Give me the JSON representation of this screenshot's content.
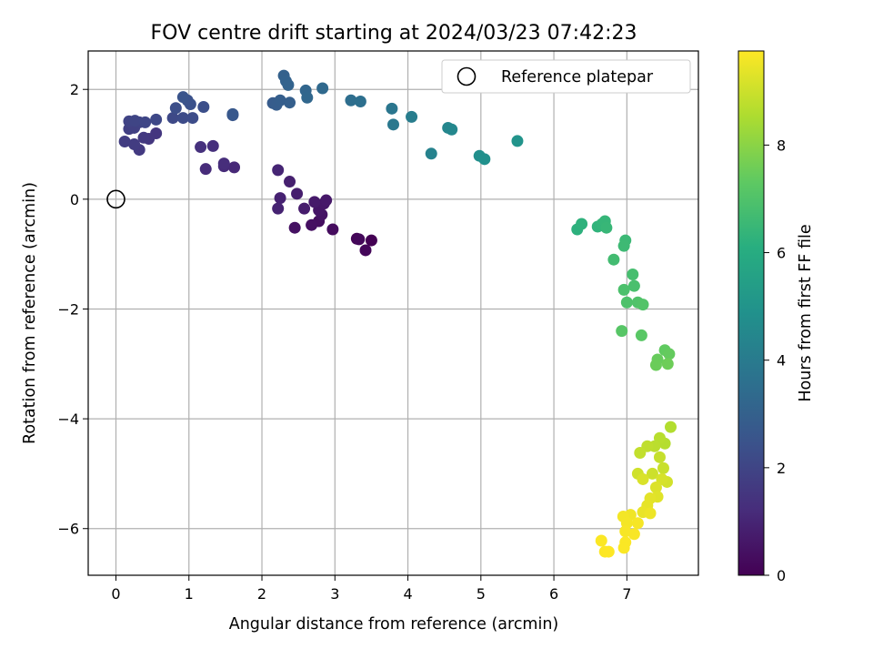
{
  "chart_data": {
    "type": "scatter",
    "title": "FOV centre drift starting at 2024/03/23 07:42:23",
    "xlabel": "Angular distance from reference (arcmin)",
    "ylabel": "Rotation from reference (arcmin)",
    "xlim": [
      -0.38,
      7.98
    ],
    "ylim": [
      -6.85,
      2.7
    ],
    "xticks": [
      0,
      1,
      2,
      3,
      4,
      5,
      6,
      7
    ],
    "yticks": [
      -6,
      -4,
      -2,
      0,
      2
    ],
    "grid": true,
    "legend": {
      "position": "top-right",
      "label": "Reference platepar"
    },
    "reference_point": {
      "x": 0,
      "y": 0
    },
    "colorbar": {
      "label": "Hours from first FF file",
      "colormap": "viridis",
      "range": [
        0,
        9.75
      ],
      "ticks": [
        0,
        2,
        4,
        6,
        8
      ]
    },
    "points": [
      {
        "x": 3.5,
        "y": -0.75,
        "c": 0.0
      },
      {
        "x": 3.3,
        "y": -0.72,
        "c": 0.1
      },
      {
        "x": 3.42,
        "y": -0.93,
        "c": 0.15
      },
      {
        "x": 3.33,
        "y": -0.73,
        "c": 0.2
      },
      {
        "x": 2.97,
        "y": -0.55,
        "c": 0.3
      },
      {
        "x": 2.78,
        "y": -0.4,
        "c": 0.35
      },
      {
        "x": 2.68,
        "y": -0.47,
        "c": 0.4
      },
      {
        "x": 2.45,
        "y": -0.52,
        "c": 0.45
      },
      {
        "x": 2.82,
        "y": -0.28,
        "c": 0.5
      },
      {
        "x": 2.78,
        "y": -0.2,
        "c": 0.55
      },
      {
        "x": 2.85,
        "y": -0.08,
        "c": 0.6
      },
      {
        "x": 2.88,
        "y": -0.02,
        "c": 0.65
      },
      {
        "x": 2.72,
        "y": -0.05,
        "c": 0.7
      },
      {
        "x": 2.58,
        "y": -0.17,
        "c": 0.75
      },
      {
        "x": 2.48,
        "y": 0.1,
        "c": 0.8
      },
      {
        "x": 2.38,
        "y": 0.32,
        "c": 0.85
      },
      {
        "x": 2.25,
        "y": 0.02,
        "c": 0.9
      },
      {
        "x": 2.22,
        "y": -0.17,
        "c": 0.95
      },
      {
        "x": 2.22,
        "y": 0.53,
        "c": 1.0
      },
      {
        "x": 1.62,
        "y": 0.58,
        "c": 1.1
      },
      {
        "x": 1.48,
        "y": 0.6,
        "c": 1.15
      },
      {
        "x": 1.23,
        "y": 0.55,
        "c": 1.2
      },
      {
        "x": 1.48,
        "y": 0.65,
        "c": 1.25
      },
      {
        "x": 1.33,
        "y": 0.97,
        "c": 1.3
      },
      {
        "x": 1.16,
        "y": 0.95,
        "c": 1.35
      },
      {
        "x": 0.55,
        "y": 1.2,
        "c": 1.5
      },
      {
        "x": 0.45,
        "y": 1.1,
        "c": 1.55
      },
      {
        "x": 0.38,
        "y": 1.12,
        "c": 1.6
      },
      {
        "x": 0.32,
        "y": 0.9,
        "c": 1.65
      },
      {
        "x": 0.25,
        "y": 1.0,
        "c": 1.7
      },
      {
        "x": 0.12,
        "y": 1.05,
        "c": 1.75
      },
      {
        "x": 0.18,
        "y": 1.28,
        "c": 1.8
      },
      {
        "x": 0.25,
        "y": 1.3,
        "c": 1.85
      },
      {
        "x": 0.32,
        "y": 1.4,
        "c": 1.9
      },
      {
        "x": 0.18,
        "y": 1.42,
        "c": 1.95
      },
      {
        "x": 0.26,
        "y": 1.43,
        "c": 2.0
      },
      {
        "x": 0.4,
        "y": 1.4,
        "c": 2.05
      },
      {
        "x": 0.55,
        "y": 1.45,
        "c": 2.1
      },
      {
        "x": 0.78,
        "y": 1.48,
        "c": 2.15
      },
      {
        "x": 0.92,
        "y": 1.48,
        "c": 2.2
      },
      {
        "x": 1.05,
        "y": 1.48,
        "c": 2.25
      },
      {
        "x": 0.82,
        "y": 1.66,
        "c": 2.3
      },
      {
        "x": 1.2,
        "y": 1.68,
        "c": 2.35
      },
      {
        "x": 1.02,
        "y": 1.73,
        "c": 2.4
      },
      {
        "x": 0.98,
        "y": 1.8,
        "c": 2.45
      },
      {
        "x": 0.92,
        "y": 1.86,
        "c": 2.5
      },
      {
        "x": 1.6,
        "y": 1.53,
        "c": 2.6
      },
      {
        "x": 1.6,
        "y": 1.55,
        "c": 2.65
      },
      {
        "x": 2.15,
        "y": 1.75,
        "c": 2.8
      },
      {
        "x": 2.2,
        "y": 1.72,
        "c": 2.85
      },
      {
        "x": 2.25,
        "y": 1.8,
        "c": 2.9
      },
      {
        "x": 2.38,
        "y": 1.76,
        "c": 2.95
      },
      {
        "x": 2.3,
        "y": 2.25,
        "c": 3.0
      },
      {
        "x": 2.33,
        "y": 2.15,
        "c": 3.05
      },
      {
        "x": 2.36,
        "y": 2.08,
        "c": 3.1
      },
      {
        "x": 2.6,
        "y": 1.98,
        "c": 3.2
      },
      {
        "x": 2.62,
        "y": 1.85,
        "c": 3.25
      },
      {
        "x": 2.83,
        "y": 2.02,
        "c": 3.3
      },
      {
        "x": 3.22,
        "y": 1.8,
        "c": 3.5
      },
      {
        "x": 3.35,
        "y": 1.78,
        "c": 3.55
      },
      {
        "x": 3.78,
        "y": 1.65,
        "c": 3.8
      },
      {
        "x": 3.8,
        "y": 1.36,
        "c": 3.9
      },
      {
        "x": 4.05,
        "y": 1.5,
        "c": 4.1
      },
      {
        "x": 4.32,
        "y": 0.83,
        "c": 4.3
      },
      {
        "x": 4.55,
        "y": 1.3,
        "c": 4.45
      },
      {
        "x": 4.6,
        "y": 1.27,
        "c": 4.5
      },
      {
        "x": 4.98,
        "y": 0.79,
        "c": 4.8
      },
      {
        "x": 5.05,
        "y": 0.73,
        "c": 4.85
      },
      {
        "x": 5.5,
        "y": 1.06,
        "c": 5.0
      },
      {
        "x": 6.32,
        "y": -0.55,
        "c": 6.2
      },
      {
        "x": 6.38,
        "y": -0.45,
        "c": 6.25
      },
      {
        "x": 6.6,
        "y": -0.5,
        "c": 6.3
      },
      {
        "x": 6.66,
        "y": -0.45,
        "c": 6.35
      },
      {
        "x": 6.7,
        "y": -0.4,
        "c": 6.4
      },
      {
        "x": 6.72,
        "y": -0.52,
        "c": 6.45
      },
      {
        "x": 6.98,
        "y": -0.75,
        "c": 6.55
      },
      {
        "x": 6.96,
        "y": -0.85,
        "c": 6.6
      },
      {
        "x": 6.82,
        "y": -1.1,
        "c": 6.7
      },
      {
        "x": 7.08,
        "y": -1.37,
        "c": 6.8
      },
      {
        "x": 7.1,
        "y": -1.58,
        "c": 6.85
      },
      {
        "x": 6.96,
        "y": -1.65,
        "c": 6.9
      },
      {
        "x": 7.0,
        "y": -1.88,
        "c": 6.95
      },
      {
        "x": 7.15,
        "y": -1.88,
        "c": 7.0
      },
      {
        "x": 7.22,
        "y": -1.92,
        "c": 7.05
      },
      {
        "x": 6.93,
        "y": -2.4,
        "c": 7.15
      },
      {
        "x": 7.2,
        "y": -2.48,
        "c": 7.2
      },
      {
        "x": 7.52,
        "y": -2.75,
        "c": 7.35
      },
      {
        "x": 7.58,
        "y": -2.82,
        "c": 7.4
      },
      {
        "x": 7.42,
        "y": -2.92,
        "c": 7.45
      },
      {
        "x": 7.4,
        "y": -3.02,
        "c": 7.5
      },
      {
        "x": 7.56,
        "y": -3.0,
        "c": 7.55
      },
      {
        "x": 7.6,
        "y": -4.15,
        "c": 8.6
      },
      {
        "x": 7.52,
        "y": -4.45,
        "c": 8.65
      },
      {
        "x": 7.45,
        "y": -4.35,
        "c": 8.7
      },
      {
        "x": 7.38,
        "y": -4.5,
        "c": 8.75
      },
      {
        "x": 7.28,
        "y": -4.5,
        "c": 8.8
      },
      {
        "x": 7.18,
        "y": -4.62,
        "c": 8.85
      },
      {
        "x": 7.45,
        "y": -4.7,
        "c": 8.9
      },
      {
        "x": 7.5,
        "y": -4.9,
        "c": 8.95
      },
      {
        "x": 7.35,
        "y": -5.0,
        "c": 9.0
      },
      {
        "x": 7.15,
        "y": -5.0,
        "c": 9.05
      },
      {
        "x": 7.55,
        "y": -5.15,
        "c": 9.1
      },
      {
        "x": 7.48,
        "y": -5.1,
        "c": 9.15
      },
      {
        "x": 7.22,
        "y": -5.1,
        "c": 9.2
      },
      {
        "x": 7.4,
        "y": -5.25,
        "c": 9.25
      },
      {
        "x": 7.42,
        "y": -5.42,
        "c": 9.3
      },
      {
        "x": 7.32,
        "y": -5.45,
        "c": 9.35
      },
      {
        "x": 7.28,
        "y": -5.58,
        "c": 9.4
      },
      {
        "x": 7.22,
        "y": -5.7,
        "c": 9.45
      },
      {
        "x": 7.32,
        "y": -5.72,
        "c": 9.5
      },
      {
        "x": 7.05,
        "y": -5.75,
        "c": 9.55
      },
      {
        "x": 6.95,
        "y": -5.78,
        "c": 9.6
      },
      {
        "x": 7.0,
        "y": -5.9,
        "c": 9.62
      },
      {
        "x": 7.15,
        "y": -5.9,
        "c": 9.64
      },
      {
        "x": 6.98,
        "y": -6.05,
        "c": 9.66
      },
      {
        "x": 7.1,
        "y": -6.1,
        "c": 9.68
      },
      {
        "x": 6.98,
        "y": -6.25,
        "c": 9.7
      },
      {
        "x": 6.96,
        "y": -6.35,
        "c": 9.71
      },
      {
        "x": 6.65,
        "y": -6.22,
        "c": 9.72
      },
      {
        "x": 6.7,
        "y": -6.42,
        "c": 9.74
      },
      {
        "x": 6.75,
        "y": -6.42,
        "c": 9.75
      }
    ]
  }
}
